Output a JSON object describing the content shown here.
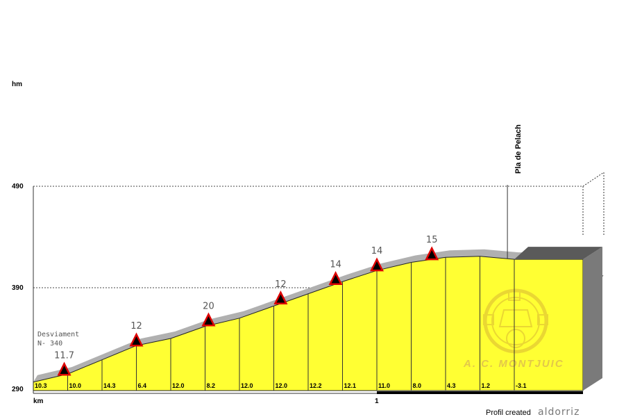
{
  "chart_data": {
    "type": "area",
    "y_unit": "hm",
    "x_unit": "km",
    "y_ticks": [
      "490",
      "390",
      "290"
    ],
    "x_ticks": [
      {
        "label": "1",
        "km": 1.0
      }
    ],
    "ylim": [
      290,
      490
    ],
    "xlim": [
      0,
      1.6
    ],
    "profile": [
      {
        "km": 0.0,
        "alt": 297
      },
      {
        "km": 0.1,
        "alt": 305
      },
      {
        "km": 0.2,
        "alt": 319
      },
      {
        "km": 0.3,
        "alt": 333
      },
      {
        "km": 0.4,
        "alt": 340
      },
      {
        "km": 0.5,
        "alt": 352
      },
      {
        "km": 0.6,
        "alt": 360
      },
      {
        "km": 0.7,
        "alt": 372
      },
      {
        "km": 0.8,
        "alt": 384
      },
      {
        "km": 0.9,
        "alt": 396
      },
      {
        "km": 1.0,
        "alt": 407
      },
      {
        "km": 1.1,
        "alt": 415
      },
      {
        "km": 1.2,
        "alt": 420
      },
      {
        "km": 1.3,
        "alt": 421
      },
      {
        "km": 1.4,
        "alt": 418
      },
      {
        "km": 1.5,
        "alt": 418
      },
      {
        "km": 1.6,
        "alt": 418
      }
    ],
    "segment_gradients": [
      "10.3",
      "10.0",
      "14.3",
      "6.4",
      "12.0",
      "8.2",
      "12.0",
      "12.0",
      "12.2",
      "12.1",
      "11.0",
      "8.0",
      "4.3",
      "1.2",
      "-3.1"
    ],
    "warnings": [
      {
        "label": "11.7",
        "km": 0.09
      },
      {
        "label": "12",
        "km": 0.3
      },
      {
        "label": "20",
        "km": 0.51
      },
      {
        "label": "12",
        "km": 0.72
      },
      {
        "label": "14",
        "km": 0.88
      },
      {
        "label": "14",
        "km": 1.0
      },
      {
        "label": "15",
        "km": 1.16
      }
    ],
    "annotations": {
      "summit": {
        "label": "Pla de Pelach",
        "km": 1.38
      },
      "note_line1": "Desviament",
      "note_line2": "N- 340"
    }
  },
  "footer": {
    "credit": "Profil created",
    "brand": "aldorriz"
  },
  "logo": {
    "text": "A. C. MONTJUIC"
  },
  "colors": {
    "fill": "#ffff33",
    "shadow": "#b0b0b0",
    "side": "#7a7a7a",
    "top_band": "#5a5a5a",
    "warning": "#dd0000"
  }
}
